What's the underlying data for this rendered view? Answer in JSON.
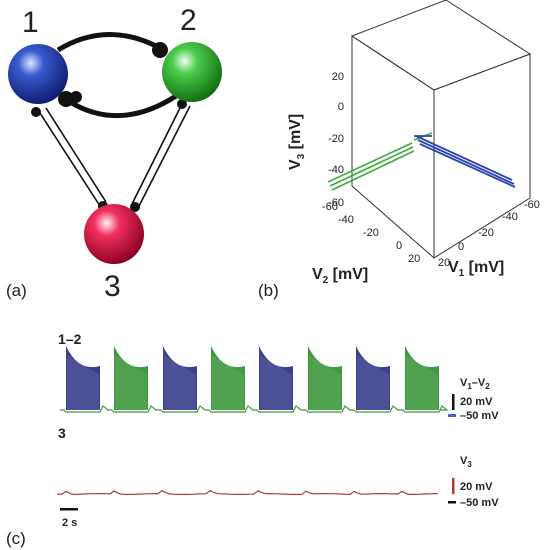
{
  "panels": {
    "a": "(a)",
    "b": "(b)",
    "c": "(c)"
  },
  "neurons": [
    {
      "id": "1",
      "color": "#1e3a9a"
    },
    {
      "id": "2",
      "color": "#22a822"
    },
    {
      "id": "3",
      "color": "#d0103a"
    }
  ],
  "phase_plot": {
    "axes": {
      "v3": {
        "label": "V",
        "sub": "3",
        "unit": " [mV]",
        "ticks": [
          "20",
          "0",
          "-20",
          "-40",
          "-60"
        ]
      },
      "v2": {
        "label": "V",
        "sub": "2",
        "unit": " [mV]",
        "ticks": [
          "-60",
          "-40",
          "-20",
          "0",
          "20"
        ]
      },
      "v1": {
        "label": "V",
        "sub": "1",
        "unit": " [mV]",
        "ticks": [
          "20",
          "0",
          "-20",
          "-40",
          "-60"
        ]
      }
    },
    "colors": {
      "green": "#3dab3d",
      "blue": "#2a44b0"
    }
  },
  "traces": {
    "label_12": "1–2",
    "label_3": "3",
    "legend_12": {
      "name_v": "V",
      "sub1": "1",
      "dash": "–V",
      "sub2": "2",
      "scale": "20 mV",
      "baseline": "–50 mV"
    },
    "legend_3": {
      "name_v": "V",
      "sub": "3",
      "scale": "20 mV",
      "baseline": "–50 mV"
    },
    "time_scale": "2 s",
    "colors": {
      "blue": "#3b3f8c",
      "green": "#3f9a3f",
      "red": "#b03838",
      "blue_line": "#4b60c8"
    }
  }
}
